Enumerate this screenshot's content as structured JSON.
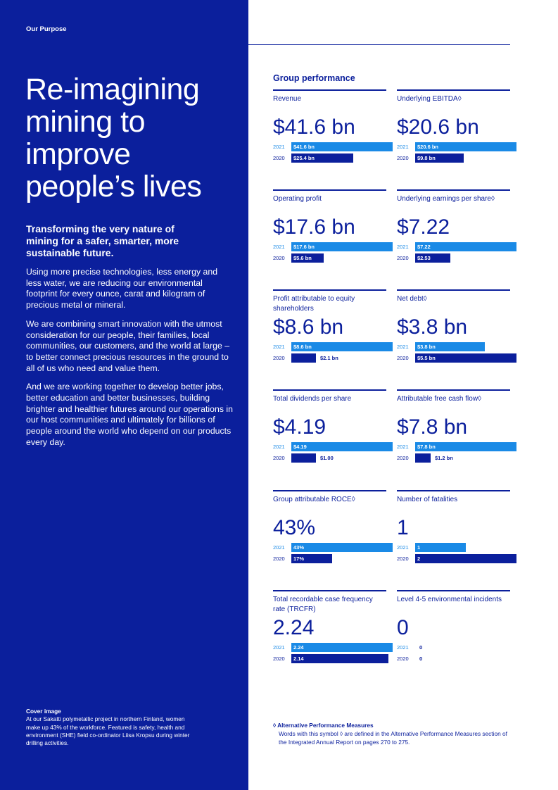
{
  "section_label": "Our Purpose",
  "hero_lines": [
    "Re-imagining",
    "mining to",
    "improve",
    "people’s lives"
  ],
  "intro_bold": "Transforming the very nature of mining for a safer, smarter, more sustainable future.",
  "paragraphs": [
    "Using more precise technologies, less energy and less water, we are reducing our environmental footprint for every ounce, carat and kilogram of precious metal or mineral.",
    "We are combining smart innovation with the utmost consideration for our people, their families, local communities, our customers, and the world at large – to better connect precious resources in the ground to all of us who need and value them.",
    "And we are working together to develop better jobs, better education and better businesses, building brighter and healthier futures around our operations in our host communities and ultimately for billions of people around the world who depend on our products every day."
  ],
  "cover": {
    "title": "Cover image",
    "text": "At our Sakatti polymetallic project in northern Finland, women make up 43% of the workforce. Featured is safety, health and environment (SHE) field co-ordinator Liisa Kropsu during winter drilling activities."
  },
  "group_performance_title": "Group performance",
  "colors": {
    "navy": "#0b1f9c",
    "accent": "#1a8ae6"
  },
  "metrics": [
    {
      "label": "Revenue",
      "big": "$41.6 bn",
      "y2021": "2021",
      "y2020": "2020",
      "v2021": "$41.6 bn",
      "v2020": "$25.4 bn",
      "f2021": 1.0,
      "f2020": 0.61
    },
    {
      "label": "Underlying EBITDA◊",
      "big": "$20.6 bn",
      "y2021": "2021",
      "y2020": "2020",
      "v2021": "$20.6 bn",
      "v2020": "$9.8 bn",
      "f2021": 1.0,
      "f2020": 0.48
    },
    {
      "label": "Operating profit",
      "big": "$17.6 bn",
      "y2021": "2021",
      "y2020": "2020",
      "v2021": "$17.6 bn",
      "v2020": "$5.6 bn",
      "f2021": 1.0,
      "f2020": 0.32
    },
    {
      "label": "Underlying earnings per share◊",
      "big": "$7.22",
      "y2021": "2021",
      "y2020": "2020",
      "v2021": "$7.22",
      "v2020": "$2.53",
      "f2021": 1.0,
      "f2020": 0.35
    },
    {
      "label": "Profit attributable to equity shareholders",
      "big": "$8.6 bn",
      "y2021": "2021",
      "y2020": "2020",
      "v2021": "$8.6 bn",
      "v2020": "$2.1 bn",
      "f2021": 1.0,
      "f2020": 0.24
    },
    {
      "label": "Net debt◊",
      "big": "$3.8 bn",
      "y2021": "2021",
      "y2020": "2020",
      "v2021": "$3.8 bn",
      "v2020": "$5.5 bn",
      "f2021": 0.69,
      "f2020": 1.0
    },
    {
      "label": "Total dividends per share",
      "big": "$4.19",
      "y2021": "2021",
      "y2020": "2020",
      "v2021": "$4.19",
      "v2020": "$1.00",
      "f2021": 1.0,
      "f2020": 0.24
    },
    {
      "label": "Attributable free cash flow◊",
      "big": "$7.8 bn",
      "y2021": "2021",
      "y2020": "2020",
      "v2021": "$7.8 bn",
      "v2020": "$1.2 bn",
      "f2021": 1.0,
      "f2020": 0.15
    },
    {
      "label": "Group attributable ROCE◊",
      "big": "43%",
      "y2021": "2021",
      "y2020": "2020",
      "v2021": "43%",
      "v2020": "17%",
      "f2021": 1.0,
      "f2020": 0.4
    },
    {
      "label": "Number of fatalities",
      "big": "1",
      "y2021": "2021",
      "y2020": "2020",
      "v2021": "1",
      "v2020": "2",
      "f2021": 0.5,
      "f2020": 1.0
    },
    {
      "label": "Total recordable case frequency rate (TRCFR)",
      "big": "2.24",
      "y2021": "2021",
      "y2020": "2020",
      "v2021": "2.24",
      "v2020": "2.14",
      "f2021": 1.0,
      "f2020": 0.96
    },
    {
      "label": "Level 4-5 environmental incidents",
      "big": "0",
      "y2021": "2021",
      "y2020": "2020",
      "v2021": "0",
      "v2020": "0",
      "f2021": 0,
      "f2020": 0
    }
  ],
  "apm": {
    "title": "◊ Alternative Performance Measures",
    "text": "Words with this symbol ◊ are defined in the Alternative Performance Measures section of the Integrated Annual Report on pages 270 to 275."
  }
}
